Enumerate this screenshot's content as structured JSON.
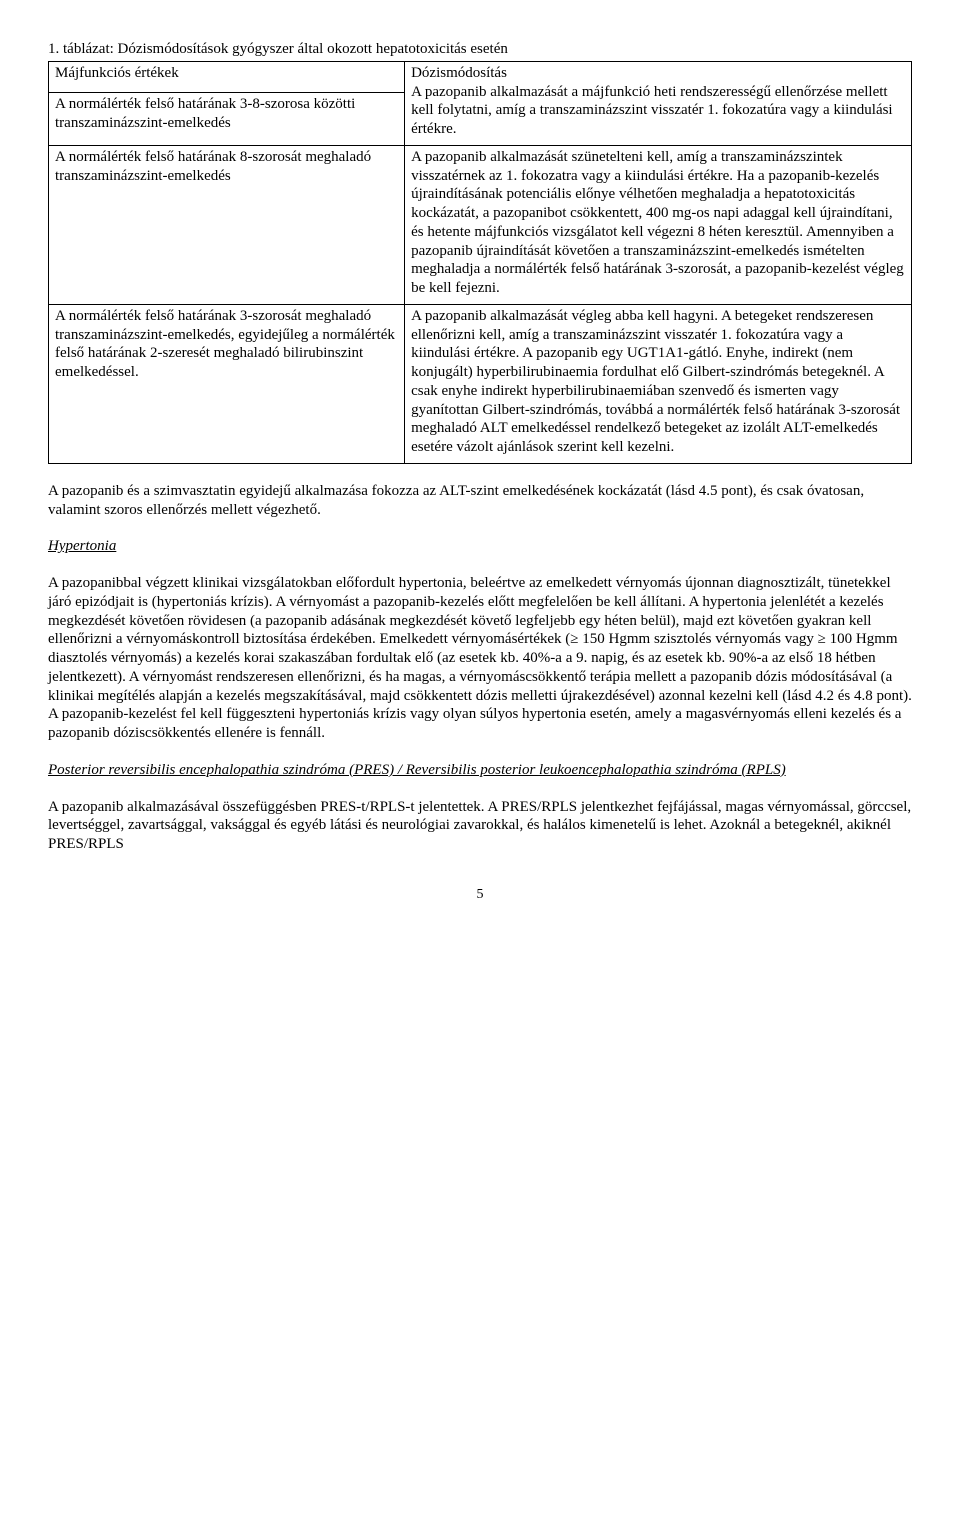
{
  "tableCaption": "1. táblázat: Dózismódosítások gyógyszer által okozott hepatotoxicitás esetén",
  "table": {
    "rows": [
      {
        "c1": "Májfunkciós értékek",
        "c2": "Dózismódosítás"
      },
      {
        "c1": "A normálérték felső határának 3-8-szorosa közötti transzaminázszint-emelkedés",
        "c2": "A pazopanib alkalmazását a májfunkció heti rendszerességű ellenőrzése mellett kell folytatni, amíg a transzaminázszint visszatér 1. fokozatúra vagy a kiindulási értékre."
      },
      {
        "c1": "A normálérték felső határának 8-szorosát meghaladó transzaminázszint-emelkedés",
        "c2": "A pazopanib alkalmazását szünetelteni kell, amíg a transzaminázszintek visszatérnek az 1. fokozatra vagy a kiindulási értékre. Ha a pazopanib-kezelés újraindításának potenciális előnye vélhetően meghaladja a hepatotoxicitás kockázatát, a pazopanibot csökkentett, 400 mg-os napi adaggal kell újraindítani, és hetente májfunkciós vizsgálatot kell végezni 8 héten keresztül. Amennyiben a pazopanib újraindítását követően a transzaminázszint-emelkedés ismételten meghaladja a normálérték felső határának 3-szorosát, a pazopanib-kezelést végleg be kell fejezni."
      },
      {
        "c1": "A normálérték felső határának 3-szorosát meghaladó transzaminázszint-emelkedés, egyidejűleg a normálérték felső határának 2-szeresét meghaladó bilirubinszint emelkedéssel.",
        "c2": "A pazopanib alkalmazását végleg abba kell hagyni. A betegeket rendszeresen ellenőrizni kell, amíg a transzaminázszint visszatér 1. fokozatúra vagy a kiindulási értékre. A pazopanib egy UGT1A1-gátló. Enyhe, indirekt (nem konjugált) hyperbilirubinaemia fordulhat elő Gilbert-szindrómás betegeknél. A csak enyhe indirekt hyperbilirubinaemiában szenvedő és ismerten vagy gyanítottan Gilbert-szindrómás, továbbá a normálérték felső határának 3-szorosát meghaladó ALT emelkedéssel rendelkező betegeket az izolált ALT-emelkedés esetére vázolt ajánlások szerint kell kezelni."
      }
    ]
  },
  "para1": "A pazopanib és a szimvasztatin egyidejű alkalmazása fokozza az ALT-szint emelkedésének kockázatát (lásd 4.5 pont), és csak óvatosan, valamint szoros ellenőrzés mellett végezhető.",
  "heading1": "Hypertonia",
  "para2": "A pazopanibbal végzett klinikai vizsgálatokban előfordult hypertonia, beleértve az emelkedett vérnyomás újonnan diagnosztizált, tünetekkel járó epizódjait is (hypertoniás krízis). A vérnyomást a pazopanib-kezelés előtt megfelelően be kell állítani. A hypertonia jelenlétét a kezelés megkezdését követően rövidesen (a pazopanib adásának megkezdését követő legfeljebb egy héten belül), majd ezt követően gyakran kell ellenőrizni a vérnyomáskontroll biztosítása érdekében. Emelkedett vérnyomásértékek (≥ 150 Hgmm szisztolés vérnyomás vagy ≥ 100 Hgmm diasztolés vérnyomás) a kezelés korai szakaszában fordultak elő (az esetek kb. 40%-a a 9. napig, és az esetek kb. 90%-a az első 18 hétben jelentkezett). A vérnyomást rendszeresen ellenőrizni, és ha magas, a vérnyomáscsökkentő terápia mellett a pazopanib dózis módosításával (a klinikai megítélés alapján a kezelés megszakításával, majd csökkentett dózis melletti újrakezdésével) azonnal kezelni kell (lásd 4.2 és 4.8 pont). A pazopanib-kezelést fel kell függeszteni hypertoniás krízis vagy olyan súlyos hypertonia esetén, amely a magasvérnyomás elleni kezelés és a pazopanib dóziscsökkentés ellenére is fennáll.",
  "heading2": "Posterior reversibilis encephalopathia szindróma (PRES) / Reversibilis posterior leukoencephalopathia szindróma (RPLS)",
  "para3": "A pazopanib alkalmazásával összefüggésben PRES-t/RPLS-t jelentettek. A PRES/RPLS jelentkezhet fejfájással, magas vérnyomással, görccsel, levertséggel, zavartsággal, vaksággal és egyéb látási és neurológiai zavarokkal, és halálos kimenetelű is lehet. Azoknál a betegeknél, akiknél PRES/RPLS",
  "pageNumber": "5"
}
